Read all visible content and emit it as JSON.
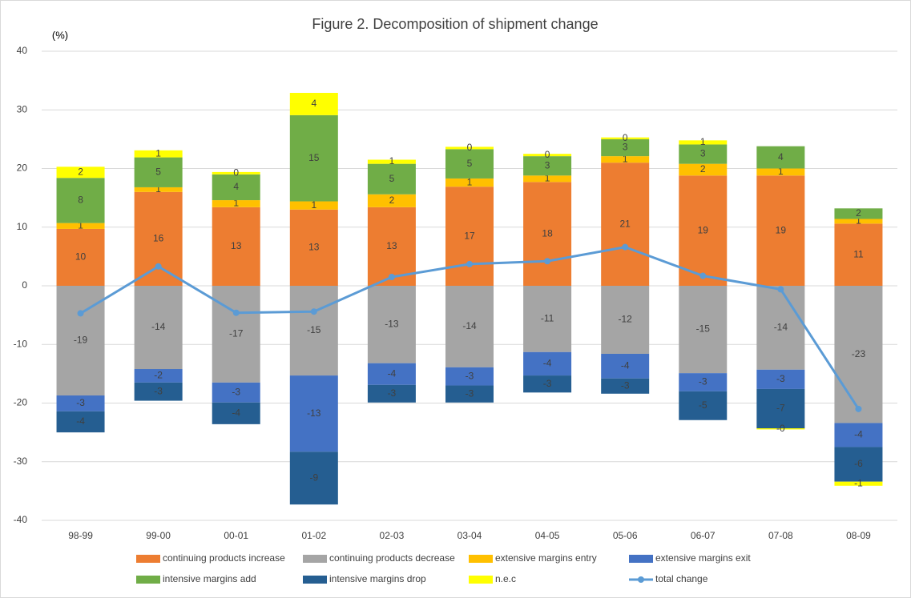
{
  "chart_data": {
    "type": "stacked-bar-line",
    "title": "Figure 2. Decomposition of shipment change",
    "y_label": "(%)",
    "categories": [
      "98-99",
      "99-00",
      "00-01",
      "01-02",
      "02-03",
      "03-04",
      "04-05",
      "05-06",
      "06-07",
      "07-08",
      "08-09"
    ],
    "ylim": [
      -40,
      40
    ],
    "yticks": [
      -40,
      -30,
      -20,
      -10,
      0,
      10,
      20,
      30,
      40
    ],
    "grid": true,
    "series": [
      {
        "name": "continuing products increase",
        "color": "#ed7d31",
        "values": [
          9.7,
          16.0,
          13.4,
          13.0,
          13.4,
          16.9,
          17.7,
          21.0,
          18.8,
          18.8,
          10.6
        ],
        "value_labels": [
          "10",
          "16",
          "13",
          "13",
          "13",
          "17",
          "18",
          "21",
          "19",
          "19",
          "11"
        ]
      },
      {
        "name": "continuing products decrease",
        "color": "#a5a5a5",
        "values": [
          -18.7,
          -14.2,
          -16.5,
          -15.3,
          -13.2,
          -13.9,
          -11.3,
          -11.6,
          -14.9,
          -14.3,
          -23.4
        ],
        "value_labels": [
          "-19",
          "-14",
          "-17",
          "-15",
          "-13",
          "-14",
          "-11",
          "-12",
          "-15",
          "-14",
          "-23"
        ]
      },
      {
        "name": "extensive margins entry",
        "color": "#ffc000",
        "values": [
          1.0,
          0.8,
          1.2,
          1.4,
          2.2,
          1.4,
          1.1,
          1.1,
          2.0,
          1.2,
          0.8
        ],
        "value_labels": [
          "1",
          "1",
          "1",
          "1",
          "2",
          "1",
          "1",
          "1",
          "2",
          "1",
          "1"
        ]
      },
      {
        "name": "extensive margins exit",
        "color": "#4472c4",
        "values": [
          -2.7,
          -2.3,
          -3.4,
          -13.0,
          -3.7,
          -3.1,
          -4.0,
          -4.2,
          -3.1,
          -3.3,
          -4.1
        ],
        "value_labels": [
          "-3",
          "-2",
          "-3",
          "-13",
          "-4",
          "-3",
          "-4",
          "-4",
          "-3",
          "-3",
          "-4"
        ]
      },
      {
        "name": "intensive margins add",
        "color": "#70ad47",
        "values": [
          7.7,
          5.1,
          4.4,
          14.7,
          5.2,
          5.0,
          3.3,
          2.9,
          3.3,
          3.8,
          1.8
        ],
        "value_labels": [
          "8",
          "5",
          "4",
          "15",
          "5",
          "5",
          "3",
          "3",
          "3",
          "4",
          "2"
        ]
      },
      {
        "name": "intensive margins drop",
        "color": "#255e91",
        "values": [
          -3.6,
          -3.1,
          -3.7,
          -9.0,
          -3.0,
          -2.9,
          -2.9,
          -2.6,
          -4.9,
          -6.7,
          -5.9
        ],
        "value_labels": [
          "-4",
          "-3",
          "-4",
          "-9",
          "-3",
          "-3",
          "-3",
          "-3",
          "-5",
          "-7",
          "-6"
        ]
      },
      {
        "name": "n.e.c",
        "color": "#ffff00",
        "values": [
          1.9,
          1.2,
          0.4,
          3.8,
          0.7,
          0.4,
          0.4,
          0.3,
          0.7,
          -0.2,
          -0.7
        ],
        "value_labels": [
          "2",
          "1",
          "0",
          "4",
          "1",
          "0",
          "0",
          "0",
          "1",
          "-0",
          "-1"
        ]
      },
      {
        "name": "total change",
        "color": "#5b9bd5",
        "kind": "line",
        "values": [
          -4.7,
          3.3,
          -4.6,
          -4.4,
          1.5,
          3.7,
          4.2,
          6.6,
          1.7,
          -0.6,
          -21.0
        ]
      }
    ]
  }
}
